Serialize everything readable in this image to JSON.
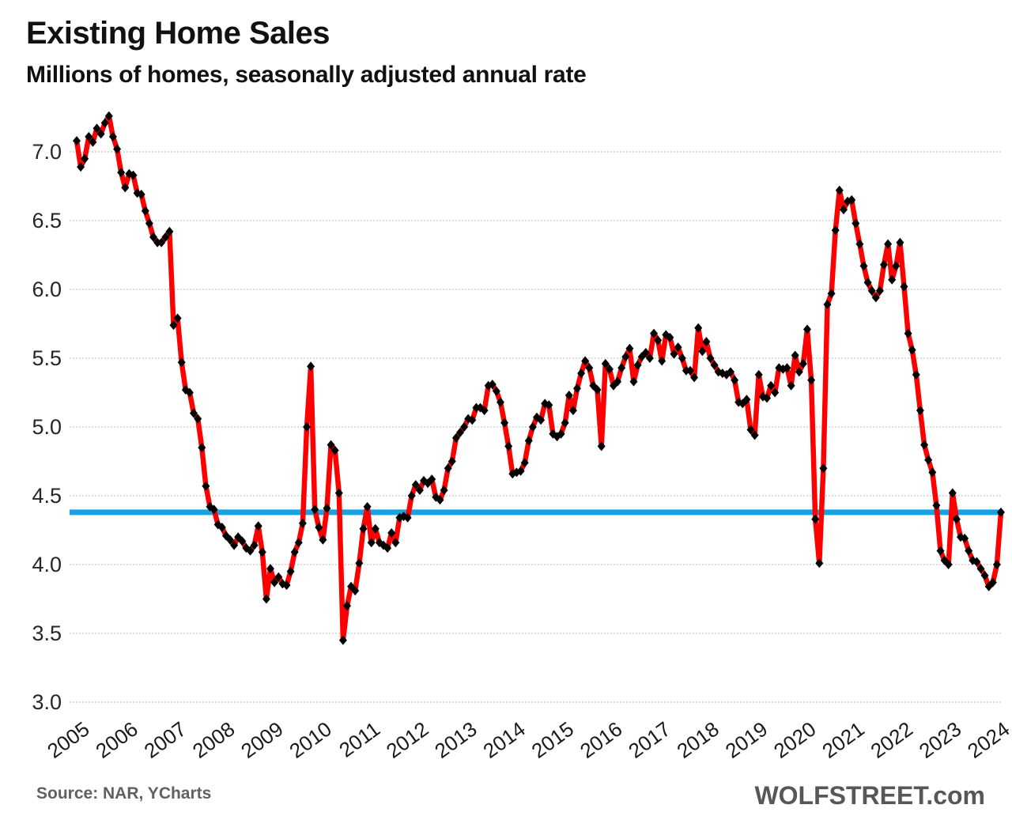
{
  "header": {
    "title": "Existing Home Sales",
    "subtitle": "Millions of homes, seasonally adjusted annual rate"
  },
  "footer": {
    "source": "Source: NAR, YCharts",
    "brand": "WOLFSTREET.com"
  },
  "chart_data": {
    "type": "line",
    "title": "Existing Home Sales",
    "subtitle": "Millions of homes, seasonally adjusted annual rate",
    "ylabel": "Millions of homes, seasonally adjusted annual rate",
    "xlabel": "",
    "frequency": "monthly",
    "x_start": "2005-01",
    "x_end": "2024-02",
    "grid": true,
    "legend": false,
    "y_axis": {
      "min": 3.0,
      "max": 7.0,
      "tick_step": 0.5
    },
    "y_tick_values": [
      7.0,
      6.5,
      6.0,
      5.5,
      5.0,
      4.5,
      4.0,
      3.5,
      3.0
    ],
    "y_tick_labels": [
      "7.0",
      "6.5",
      "6.0",
      "5.5",
      "5.0",
      "4.5",
      "4.0",
      "3.5",
      "3.0"
    ],
    "x_tick_labels": [
      "2005",
      "2006",
      "2007",
      "2008",
      "2009",
      "2010",
      "2011",
      "2012",
      "2013",
      "2014",
      "2015",
      "2016",
      "2017",
      "2018",
      "2019",
      "2020",
      "2021",
      "2022",
      "2023",
      "2024"
    ],
    "reference_line": {
      "value": 4.38,
      "color": "#18a2e3"
    },
    "series": [
      {
        "name": "Existing Home Sales",
        "color": "#fe0000",
        "line_width": 6.5,
        "marker": {
          "shape": "diamond",
          "color": "#000000"
        },
        "monthly": [
          {
            "year": 2005,
            "values": [
              7.08,
              6.89,
              6.95,
              7.11,
              7.07,
              7.17,
              7.13,
              7.21,
              7.26,
              7.11,
              7.02,
              6.85
            ]
          },
          {
            "year": 2006,
            "values": [
              6.74,
              6.84,
              6.83,
              6.7,
              6.69,
              6.57,
              6.48,
              6.38,
              6.34,
              6.34,
              6.38,
              6.42
            ]
          },
          {
            "year": 2007,
            "values": [
              5.74,
              5.79,
              5.47,
              5.27,
              5.25,
              5.1,
              5.06,
              4.85,
              4.57,
              4.42,
              4.4,
              4.29
            ]
          },
          {
            "year": 2008,
            "values": [
              4.27,
              4.21,
              4.18,
              4.14,
              4.2,
              4.17,
              4.12,
              4.1,
              4.14,
              4.28,
              4.09,
              3.75
            ]
          },
          {
            "year": 2009,
            "values": [
              3.97,
              3.87,
              3.91,
              3.86,
              3.85,
              3.95,
              4.09,
              4.16,
              4.3,
              5.0,
              5.44,
              4.4
            ]
          },
          {
            "year": 2010,
            "values": [
              4.27,
              4.18,
              4.41,
              4.87,
              4.83,
              4.52,
              3.45,
              3.7,
              3.84,
              3.81,
              4.01,
              4.26
            ]
          },
          {
            "year": 2011,
            "values": [
              4.42,
              4.16,
              4.26,
              4.16,
              4.14,
              4.12,
              4.23,
              4.16,
              4.34,
              4.35,
              4.34,
              4.5
            ]
          },
          {
            "year": 2012,
            "values": [
              4.58,
              4.54,
              4.61,
              4.59,
              4.62,
              4.49,
              4.47,
              4.54,
              4.7,
              4.75,
              4.92,
              4.96
            ]
          },
          {
            "year": 2013,
            "values": [
              5.0,
              5.06,
              5.05,
              5.14,
              5.14,
              5.12,
              5.3,
              5.31,
              5.26,
              5.18,
              5.03,
              4.86
            ]
          },
          {
            "year": 2014,
            "values": [
              4.66,
              4.67,
              4.68,
              4.74,
              4.9,
              5.0,
              5.07,
              5.05,
              5.17,
              5.16,
              4.95,
              4.93
            ]
          },
          {
            "year": 2015,
            "values": [
              4.95,
              5.03,
              5.23,
              5.12,
              5.28,
              5.39,
              5.48,
              5.43,
              5.3,
              5.27,
              4.86,
              5.46
            ]
          },
          {
            "year": 2016,
            "values": [
              5.42,
              5.3,
              5.33,
              5.43,
              5.51,
              5.57,
              5.33,
              5.45,
              5.51,
              5.54,
              5.5,
              5.68
            ]
          },
          {
            "year": 2017,
            "values": [
              5.63,
              5.48,
              5.67,
              5.65,
              5.53,
              5.58,
              5.5,
              5.41,
              5.41,
              5.36,
              5.72,
              5.55
            ]
          },
          {
            "year": 2018,
            "values": [
              5.62,
              5.5,
              5.45,
              5.4,
              5.39,
              5.38,
              5.4,
              5.34,
              5.18,
              5.17,
              5.2,
              4.98
            ]
          },
          {
            "year": 2019,
            "values": [
              4.94,
              5.38,
              5.22,
              5.21,
              5.3,
              5.25,
              5.43,
              5.42,
              5.43,
              5.3,
              5.52,
              5.4
            ]
          },
          {
            "year": 2020,
            "values": [
              5.46,
              5.71,
              5.34,
              4.33,
              4.01,
              4.7,
              5.89,
              5.97,
              6.43,
              6.72,
              6.58,
              6.64
            ]
          },
          {
            "year": 2021,
            "values": [
              6.65,
              6.48,
              6.33,
              6.17,
              6.05,
              5.99,
              5.94,
              5.99,
              6.18,
              6.33,
              6.07,
              6.17
            ]
          },
          {
            "year": 2022,
            "values": [
              6.34,
              6.02,
              5.68,
              5.56,
              5.38,
              5.12,
              4.87,
              4.76,
              4.67,
              4.43,
              4.1,
              4.03
            ]
          },
          {
            "year": 2023,
            "values": [
              4.0,
              4.52,
              4.33,
              4.2,
              4.19,
              4.1,
              4.03,
              4.02,
              3.97,
              3.92,
              3.84,
              3.87
            ]
          },
          {
            "year": 2024,
            "values": [
              4.0,
              4.38
            ]
          }
        ]
      }
    ]
  }
}
